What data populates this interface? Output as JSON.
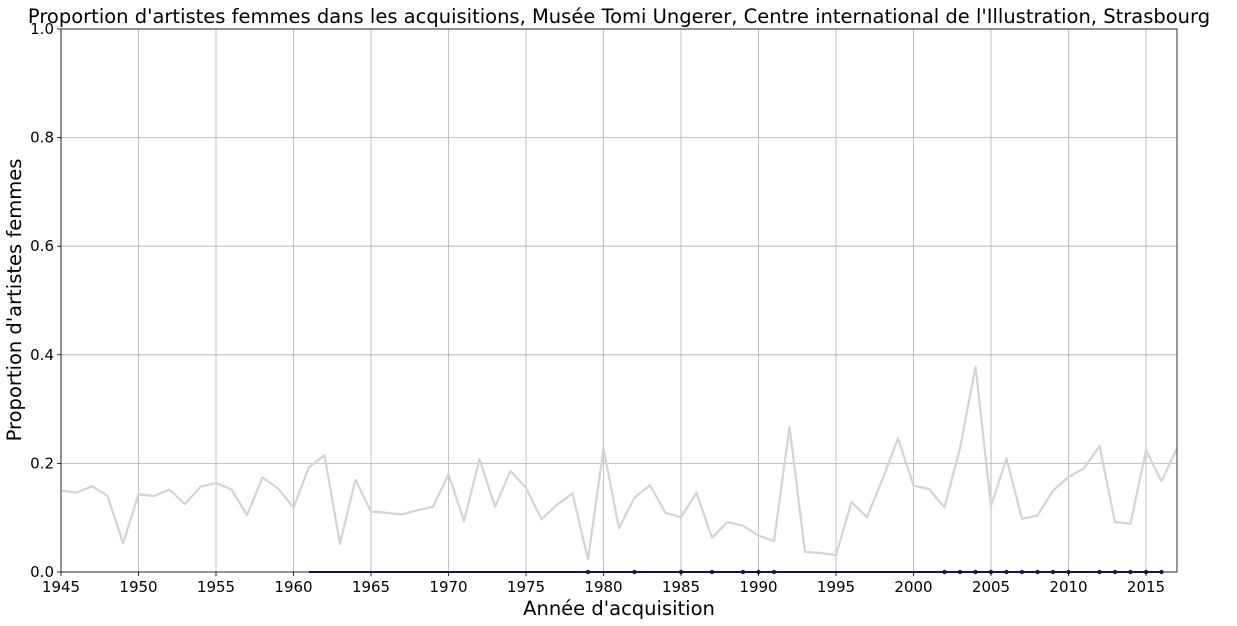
{
  "chart_data": {
    "type": "line",
    "title": "Proportion d'artistes femmes dans les acquisitions, Musée Tomi Ungerer, Centre international de l'Illustration, Strasbourg",
    "xlabel": "Année d'acquisition",
    "ylabel": "Proportion d'artistes femmes",
    "xlim": [
      1945,
      2017
    ],
    "ylim": [
      0,
      1
    ],
    "grid": true,
    "xticks": [
      1945,
      1950,
      1955,
      1960,
      1965,
      1970,
      1975,
      1980,
      1985,
      1990,
      1995,
      2000,
      2005,
      2010,
      2015
    ],
    "xtick_labels": [
      "1945",
      "1950",
      "1955",
      "1960",
      "1965",
      "1970",
      "1975",
      "1980",
      "1985",
      "1990",
      "1995",
      "2000",
      "2005",
      "2010",
      "2015"
    ],
    "yticks": [
      0.0,
      0.2,
      0.4,
      0.6,
      0.8,
      1.0
    ],
    "ytick_labels": [
      "0.0",
      "0.2",
      "0.4",
      "0.6",
      "0.8",
      "1.0"
    ],
    "series": [
      {
        "color": "#d3d3d3",
        "x": [
          1945,
          1946,
          1947,
          1948,
          1949,
          1950,
          1951,
          1952,
          1953,
          1954,
          1955,
          1956,
          1957,
          1958,
          1959,
          1960,
          1961,
          1962,
          1963,
          1964,
          1965,
          1966,
          1967,
          1968,
          1969,
          1970,
          1971,
          1972,
          1973,
          1974,
          1975,
          1976,
          1977,
          1978,
          1979,
          1980,
          1981,
          1982,
          1983,
          1984,
          1985,
          1986,
          1987,
          1988,
          1989,
          1990,
          1991,
          1992,
          1993,
          1994,
          1995,
          1996,
          1997,
          1998,
          1999,
          2000,
          2001,
          2002,
          2003,
          2004,
          2005,
          2006,
          2007,
          2008,
          2009,
          2010,
          2011,
          2012,
          2013,
          2014,
          2015,
          2016,
          2017
        ],
        "y": [
          0.15,
          0.146,
          0.158,
          0.14,
          0.053,
          0.143,
          0.14,
          0.152,
          0.125,
          0.157,
          0.164,
          0.152,
          0.105,
          0.174,
          0.154,
          0.119,
          0.193,
          0.215,
          0.052,
          0.17,
          0.111,
          0.109,
          0.106,
          0.114,
          0.12,
          0.18,
          0.094,
          0.208,
          0.12,
          0.186,
          0.155,
          0.097,
          0.124,
          0.145,
          0.023,
          0.227,
          0.081,
          0.137,
          0.16,
          0.109,
          0.101,
          0.146,
          0.063,
          0.092,
          0.085,
          0.067,
          0.057,
          0.267,
          0.037,
          0.035,
          0.031,
          0.129,
          0.101,
          0.171,
          0.246,
          0.159,
          0.153,
          0.119,
          0.228,
          0.378,
          0.122,
          0.209,
          0.098,
          0.104,
          0.15,
          0.175,
          0.191,
          0.232,
          0.092,
          0.089,
          0.224,
          0.167,
          0.228
        ]
      },
      {
        "color": "#1a237e",
        "x": [
          1961,
          1962,
          1963,
          1964,
          1965,
          1966,
          1967,
          1968,
          1969,
          1970,
          1971,
          1972,
          1973,
          1974,
          1975,
          1976,
          1977,
          1978,
          1979,
          1980,
          1981,
          1982,
          1983,
          1984,
          1985,
          1986,
          1987,
          1988,
          1989,
          1990,
          1991,
          1992,
          1993,
          1994,
          1995,
          1996,
          1997,
          1998,
          1999,
          2000,
          2001,
          2002,
          2003,
          2004,
          2005,
          2006,
          2007,
          2008,
          2009,
          2010,
          2011,
          2012,
          2013,
          2014,
          2015,
          2016
        ],
        "y": [
          0,
          0,
          0,
          0,
          0,
          0,
          0,
          0,
          0,
          0,
          0,
          0,
          0,
          0,
          0,
          0,
          0,
          0,
          0,
          0,
          0,
          0,
          0,
          0,
          0,
          0,
          0,
          0,
          0,
          0,
          0,
          0,
          0,
          0,
          0,
          0,
          0,
          0,
          0,
          0,
          0,
          0,
          0,
          0,
          0,
          0,
          0,
          0,
          0,
          0,
          0,
          0,
          0,
          0,
          0,
          0
        ]
      }
    ],
    "markers": {
      "color": "#1a237e",
      "x": [
        1979,
        1982,
        1985,
        1987,
        1989,
        1990,
        1991,
        2002,
        2003,
        2004,
        2005,
        2006,
        2007,
        2008,
        2009,
        2010,
        2012,
        2013,
        2014,
        2015,
        2016
      ],
      "y": [
        0,
        0,
        0,
        0,
        0,
        0,
        0,
        0,
        0,
        0,
        0,
        0,
        0,
        0,
        0,
        0,
        0,
        0,
        0,
        0,
        0
      ]
    }
  }
}
